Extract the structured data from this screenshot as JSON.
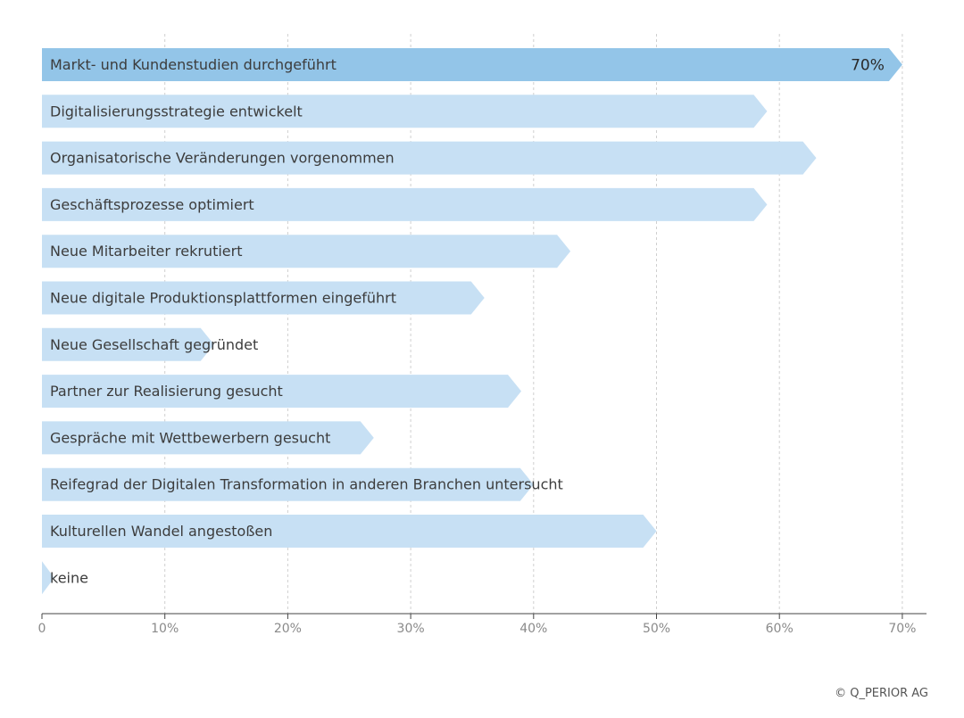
{
  "chart_data": {
    "type": "bar",
    "orientation": "horizontal",
    "categories": [
      "Markt- und Kundenstudien durchgeführt",
      "Digitalisierungsstrategie entwickelt",
      "Organisatorische Veränderungen vorgenommen",
      "Geschäftsprozesse optimiert",
      "Neue Mitarbeiter rekrutiert",
      "Neue digitale Produktionsplattformen eingeführt",
      "Neue Gesellschaft gegründet",
      "Partner zur Realisierung gesucht",
      "Gespräche mit Wettbewerbern gesucht",
      "Reifegrad der Digitalen Transformation in anderen Branchen untersucht",
      "Kulturellen Wandel angestoßen",
      "keine"
    ],
    "values": [
      70,
      59,
      63,
      59,
      43,
      36,
      14,
      39,
      27,
      40,
      50,
      1
    ],
    "value_unit": "%",
    "highlighted_index": 0,
    "value_labels": [
      {
        "index": 0,
        "text": "70%"
      }
    ],
    "x_ticks": [
      "0",
      "10%",
      "20%",
      "30%",
      "40%",
      "50%",
      "60%",
      "70%"
    ],
    "xlim": [
      0,
      72
    ],
    "grid": "vertical dashed",
    "title": "",
    "xlabel": "",
    "ylabel": ""
  },
  "colors": {
    "highlight_bar": "#93c5e8",
    "bar": "#c7e0f4",
    "grid": "#cfcfcf",
    "axis": "#444444",
    "text": "#3c3c3c",
    "tick_text": "#8a8a8a"
  },
  "footer": {
    "copyright": "© Q_PERIOR AG"
  }
}
